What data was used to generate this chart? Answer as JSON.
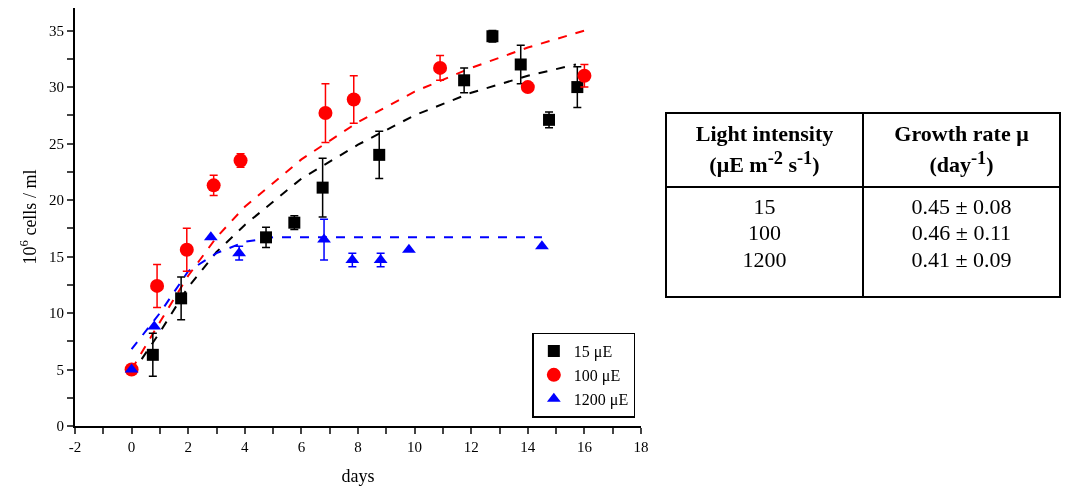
{
  "chart_data": [
    {
      "type": "scatter",
      "xlabel": "days",
      "ylabel": "10$^{6}$ cells / ml",
      "xlim": [
        -2,
        18
      ],
      "ylim": [
        0,
        37
      ],
      "xticks": [
        -2,
        {
          "value": -1,
          "label": null
        },
        0,
        {
          "value": 1,
          "label": null
        },
        2,
        {
          "value": 3,
          "label": null
        },
        4,
        {
          "value": 5,
          "label": null
        },
        6,
        {
          "value": 7,
          "label": null
        },
        8,
        {
          "value": 9,
          "label": null
        },
        10,
        {
          "value": 11,
          "label": null
        },
        12,
        {
          "value": 13,
          "label": null
        },
        14,
        {
          "value": 15,
          "label": null
        },
        16,
        {
          "value": 17,
          "label": null
        },
        18
      ],
      "yticks": [
        0,
        {
          "value": 2.5,
          "label": null
        },
        5,
        {
          "value": 7.5,
          "label": null
        },
        10,
        {
          "value": 12.5,
          "label": null
        },
        15,
        {
          "value": 17.5,
          "label": null
        },
        20,
        {
          "value": 22.5,
          "label": null
        },
        25,
        {
          "value": 27.5,
          "label": null
        },
        30,
        {
          "value": 32.5,
          "label": null
        },
        35
      ],
      "grid": false,
      "legend": "bottom right",
      "series": [
        {
          "type": "line",
          "color": "#000000",
          "line_style": "dashed",
          "marker": "none",
          "x": [
            0,
            1,
            2,
            3,
            4,
            6,
            8,
            10,
            12,
            14,
            15.7
          ],
          "values": [
            4.6,
            8.3,
            12.3,
            15.4,
            17.8,
            21.9,
            24.9,
            27.5,
            29.5,
            31.0,
            32.0
          ]
        },
        {
          "type": "line",
          "color": "#ff0000",
          "line_style": "dashed",
          "marker": "none",
          "x": [
            0,
            1,
            2,
            3,
            4,
            6,
            8,
            10,
            12,
            14,
            16
          ],
          "values": [
            5.0,
            9.2,
            13.3,
            16.7,
            19.4,
            23.6,
            26.9,
            29.6,
            31.7,
            33.5,
            35.0
          ]
        },
        {
          "type": "line",
          "color": "#0000ff",
          "line_style": "dashed",
          "marker": "none",
          "x": [
            0,
            1,
            2,
            3,
            4,
            5,
            14.5
          ],
          "values": [
            6.8,
            10.0,
            13.7,
            15.3,
            16.3,
            16.7,
            16.7
          ]
        },
        {
          "type": "scatter",
          "name": "15 μE",
          "color": "#000000",
          "marker": "square",
          "x": [
            0.75,
            1.75,
            4.75,
            5.75,
            6.75,
            8.75,
            11.75,
            12.75,
            13.75,
            14.75,
            15.75
          ],
          "values": [
            6.3,
            11.3,
            16.7,
            18.0,
            21.1,
            24.0,
            30.6,
            34.5,
            32.0,
            27.1,
            30.0
          ],
          "errors": [
            1.9,
            1.9,
            0.9,
            0.6,
            2.6,
            2.1,
            1.1,
            0.5,
            1.7,
            0.7,
            1.8
          ]
        },
        {
          "type": "scatter",
          "name": "100 μE",
          "color": "#ff0000",
          "marker": "circle",
          "x": [
            0,
            0.9,
            1.95,
            2.9,
            3.85,
            6.85,
            7.85,
            10.9,
            14,
            16
          ],
          "values": [
            5.0,
            12.4,
            15.6,
            21.3,
            23.5,
            27.7,
            28.9,
            31.7,
            30.0,
            31.0
          ],
          "errors": [
            null,
            1.9,
            1.9,
            0.9,
            0.6,
            2.6,
            2.1,
            1.1,
            null,
            1.0
          ]
        },
        {
          "type": "scatter",
          "name": "1200 μE",
          "color": "#0000ff",
          "marker": "triangle",
          "x": [
            0,
            0.8,
            2.8,
            3.8,
            6.8,
            7.8,
            8.8,
            9.8,
            14.5
          ],
          "values": [
            5.0,
            8.8,
            16.7,
            15.3,
            16.5,
            14.7,
            14.7,
            15.6,
            15.9
          ],
          "errors": [
            null,
            null,
            null,
            0.6,
            1.8,
            0.6,
            0.6,
            null,
            null
          ]
        }
      ]
    },
    {
      "type": "other",
      "annotations": [
        "Light intensity\n(μE m$^{-2}$ s$^{-1}$)",
        "Growth rate μ\n(day$^{-1}$)",
        "15",
        "0.45 ± 0.08",
        "100",
        "0.46 ± 0.11",
        "1200",
        "0.41 ± 0.09"
      ]
    }
  ]
}
